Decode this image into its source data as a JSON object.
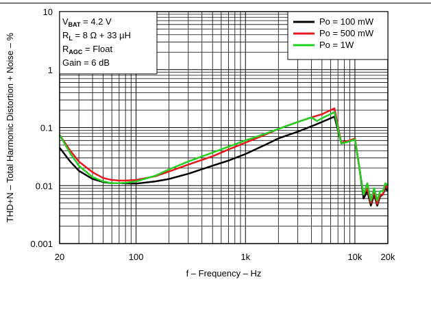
{
  "chart_data": {
    "type": "line",
    "xlabel": "f – Frequency – Hz",
    "ylabel": "THD+N – Total Harmonic Distortion + Noise – %",
    "x_scale": "log",
    "y_scale": "log",
    "xlim": [
      20,
      20000
    ],
    "ylim": [
      0.001,
      10
    ],
    "x_ticks": [
      {
        "value": 20,
        "label": "20"
      },
      {
        "value": 100,
        "label": "100"
      },
      {
        "value": 1000,
        "label": "1k"
      },
      {
        "value": 10000,
        "label": "10k"
      },
      {
        "value": 20000,
        "label": "20k"
      }
    ],
    "y_ticks": [
      {
        "value": 0.001,
        "label": "0.001"
      },
      {
        "value": 0.01,
        "label": "0.01"
      },
      {
        "value": 0.1,
        "label": "0.1"
      },
      {
        "value": 1,
        "label": "1"
      },
      {
        "value": 10,
        "label": "10"
      }
    ],
    "grid": true,
    "legend_position": "top-right",
    "annotation": {
      "lines": [
        {
          "main": "V",
          "sub": "BAT",
          "rest": " = 4.2 V"
        },
        {
          "main": "R",
          "sub": "L",
          "rest": " = 8 Ω + 33 µH"
        },
        {
          "main": "R",
          "sub": "AGC",
          "rest": " = Float"
        },
        {
          "main": "Gain = 6 dB",
          "sub": "",
          "rest": ""
        }
      ]
    },
    "series": [
      {
        "name": "Po = 100 mW",
        "color": "#000000",
        "x": [
          20,
          25,
          30,
          40,
          50,
          60,
          70,
          100,
          150,
          200,
          300,
          500,
          700,
          1000,
          1500,
          2000,
          3000,
          4000,
          5000,
          6500,
          7500,
          9000,
          10000,
          11000,
          12000,
          13000,
          14000,
          15000,
          16000,
          17000,
          18000,
          19000,
          20000
        ],
        "y": [
          0.045,
          0.026,
          0.018,
          0.013,
          0.0115,
          0.011,
          0.011,
          0.0108,
          0.0118,
          0.013,
          0.016,
          0.022,
          0.027,
          0.035,
          0.05,
          0.065,
          0.085,
          0.105,
          0.125,
          0.155,
          0.055,
          0.058,
          0.065,
          0.02,
          0.006,
          0.008,
          0.0045,
          0.007,
          0.0045,
          0.0065,
          0.007,
          0.009,
          0.008
        ]
      },
      {
        "name": "Po = 500 mW",
        "color": "#e8161b",
        "x": [
          20,
          25,
          30,
          40,
          50,
          60,
          70,
          80,
          100,
          150,
          200,
          300,
          500,
          700,
          1000,
          1500,
          2000,
          3000,
          4000,
          5000,
          6500,
          7500,
          9000,
          10000,
          11000,
          12000,
          13000,
          14000,
          15000,
          16000,
          17000,
          18000,
          19000,
          20000
        ],
        "y": [
          0.075,
          0.04,
          0.026,
          0.017,
          0.0135,
          0.0125,
          0.0122,
          0.0122,
          0.0125,
          0.0145,
          0.0175,
          0.023,
          0.032,
          0.042,
          0.055,
          0.075,
          0.095,
          0.125,
          0.15,
          0.17,
          0.215,
          0.055,
          0.06,
          0.065,
          0.02,
          0.007,
          0.009,
          0.005,
          0.008,
          0.0048,
          0.007,
          0.007,
          0.01,
          0.009
        ]
      },
      {
        "name": "Po =  1W",
        "color": "#22d022",
        "x": [
          20,
          25,
          30,
          40,
          50,
          60,
          70,
          80,
          100,
          150,
          200,
          300,
          500,
          700,
          1000,
          1500,
          2000,
          3000,
          4000,
          4500,
          5000,
          6500,
          7500,
          9000,
          10000,
          11000,
          12000,
          13000,
          14000,
          15000,
          16000,
          17000,
          18000,
          19000,
          20000
        ],
        "y": [
          0.075,
          0.036,
          0.022,
          0.014,
          0.0118,
          0.011,
          0.011,
          0.0112,
          0.0118,
          0.0148,
          0.019,
          0.026,
          0.037,
          0.047,
          0.06,
          0.078,
          0.095,
          0.125,
          0.15,
          0.13,
          0.145,
          0.185,
          0.053,
          0.058,
          0.063,
          0.02,
          0.007,
          0.011,
          0.0055,
          0.009,
          0.0055,
          0.008,
          0.008,
          0.011,
          0.01
        ]
      }
    ]
  }
}
